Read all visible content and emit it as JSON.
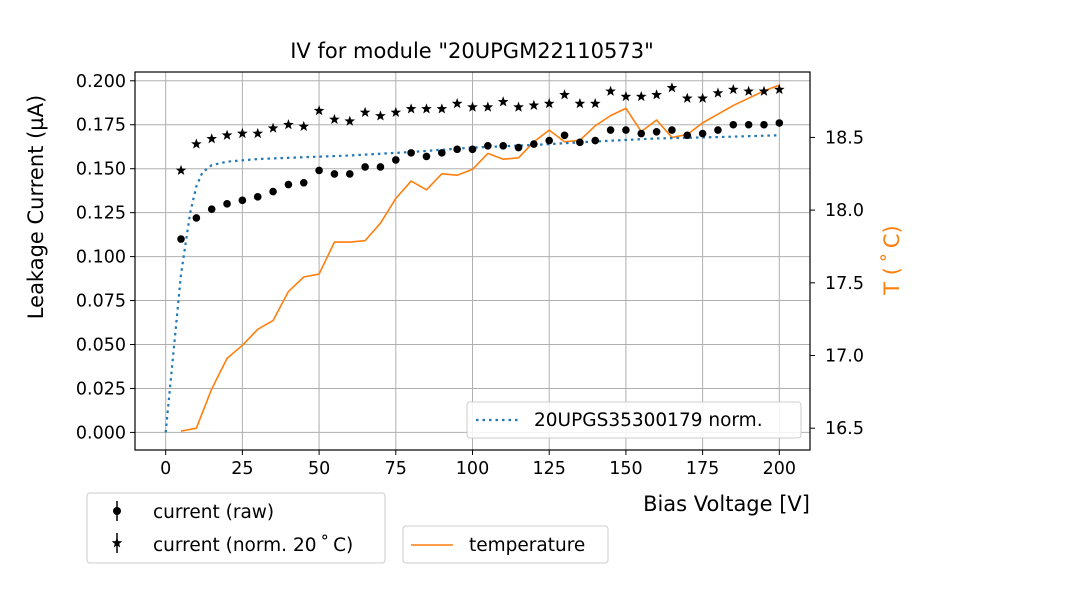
{
  "chart_data": {
    "type": "scatter",
    "title": "IV for module \"20UPGM22110573\"",
    "xlabel": "Bias Voltage [V]",
    "ylabel": "Leakage Current (µA)",
    "y2label": "T ($^\\circ$C)",
    "y2label_display": "T ( ˚ C)",
    "xlim": [
      -10,
      210
    ],
    "ylim": [
      -0.01,
      0.205
    ],
    "y2lim": [
      16.35,
      18.95
    ],
    "x_ticks": [
      0,
      25,
      50,
      75,
      100,
      125,
      150,
      175,
      200
    ],
    "y_ticks": [
      0.0,
      0.025,
      0.05,
      0.075,
      0.1,
      0.125,
      0.15,
      0.175,
      0.2
    ],
    "y_tick_labels": [
      "0.000",
      "0.025",
      "0.050",
      "0.075",
      "0.100",
      "0.125",
      "0.150",
      "0.175",
      "0.200"
    ],
    "y2_ticks": [
      16.5,
      17.0,
      17.5,
      18.0,
      18.5
    ],
    "y2_tick_labels": [
      "16.5",
      "17.0",
      "17.5",
      "18.0",
      "18.5"
    ],
    "grid": true,
    "colors": {
      "raw": "#000000",
      "norm": "#000000",
      "reference": "#1f77b4",
      "temperature": "#ff7f0e",
      "y2label": "#ff7f0e"
    },
    "series": [
      {
        "name": "current (raw)",
        "marker": "dot",
        "x": [
          5,
          10,
          15,
          20,
          25,
          30,
          35,
          40,
          45,
          50,
          55,
          60,
          65,
          70,
          75,
          80,
          85,
          90,
          95,
          100,
          105,
          110,
          115,
          120,
          125,
          130,
          135,
          140,
          145,
          150,
          155,
          160,
          165,
          170,
          175,
          180,
          185,
          190,
          195,
          200
        ],
        "values": [
          0.11,
          0.122,
          0.127,
          0.13,
          0.132,
          0.134,
          0.137,
          0.141,
          0.142,
          0.149,
          0.147,
          0.147,
          0.151,
          0.151,
          0.155,
          0.159,
          0.157,
          0.159,
          0.161,
          0.161,
          0.163,
          0.163,
          0.162,
          0.164,
          0.166,
          0.169,
          0.165,
          0.166,
          0.172,
          0.172,
          0.17,
          0.171,
          0.172,
          0.169,
          0.17,
          0.172,
          0.175,
          0.175,
          0.175,
          0.176
        ]
      },
      {
        "name": "current (norm. 20 ˚ C)",
        "marker": "star",
        "x": [
          5,
          10,
          15,
          20,
          25,
          30,
          35,
          40,
          45,
          50,
          55,
          60,
          65,
          70,
          75,
          80,
          85,
          90,
          95,
          100,
          105,
          110,
          115,
          120,
          125,
          130,
          135,
          140,
          145,
          150,
          155,
          160,
          165,
          170,
          175,
          180,
          185,
          190,
          195,
          200
        ],
        "values": [
          0.149,
          0.164,
          0.167,
          0.169,
          0.17,
          0.17,
          0.173,
          0.175,
          0.174,
          0.183,
          0.178,
          0.177,
          0.182,
          0.18,
          0.182,
          0.184,
          0.184,
          0.184,
          0.187,
          0.185,
          0.185,
          0.188,
          0.185,
          0.186,
          0.187,
          0.192,
          0.187,
          0.187,
          0.194,
          0.191,
          0.191,
          0.192,
          0.196,
          0.19,
          0.19,
          0.193,
          0.195,
          0.194,
          0.194,
          0.195
        ]
      },
      {
        "name": "20UPGS35300179 norm.",
        "style": "dotted",
        "x": [
          0,
          5,
          8,
          10,
          12,
          15,
          20,
          30,
          40,
          60,
          80,
          100,
          120,
          140,
          160,
          180,
          200
        ],
        "values": [
          0.0,
          0.09,
          0.125,
          0.14,
          0.148,
          0.152,
          0.154,
          0.1555,
          0.1562,
          0.1575,
          0.1595,
          0.162,
          0.1635,
          0.1655,
          0.1672,
          0.168,
          0.169
        ]
      },
      {
        "name": "temperature",
        "style": "solid",
        "axis": "right",
        "x": [
          5,
          10,
          15,
          20,
          25,
          30,
          35,
          40,
          45,
          50,
          55,
          60,
          65,
          70,
          75,
          80,
          85,
          90,
          95,
          100,
          105,
          110,
          115,
          120,
          125,
          130,
          135,
          140,
          145,
          150,
          155,
          160,
          165,
          170,
          175,
          180,
          185,
          190,
          195,
          200
        ],
        "values": [
          16.48,
          16.5,
          16.77,
          16.98,
          17.07,
          17.18,
          17.24,
          17.44,
          17.54,
          17.56,
          17.78,
          17.78,
          17.79,
          17.91,
          18.08,
          18.2,
          18.14,
          18.25,
          18.24,
          18.28,
          18.39,
          18.35,
          18.36,
          18.47,
          18.55,
          18.47,
          18.48,
          18.58,
          18.65,
          18.7,
          18.54,
          18.62,
          18.5,
          18.52,
          18.6,
          18.66,
          18.72,
          18.77,
          18.82,
          18.86
        ]
      }
    ],
    "legend_inside": [
      {
        "label": "20UPGS35300179 norm.",
        "position": "lower-right"
      }
    ],
    "legend_raw": [
      {
        "label": "current (raw)"
      },
      {
        "label": "current (norm. 20 ˚ C)"
      }
    ],
    "legend_temp": [
      {
        "label": "temperature"
      }
    ]
  }
}
